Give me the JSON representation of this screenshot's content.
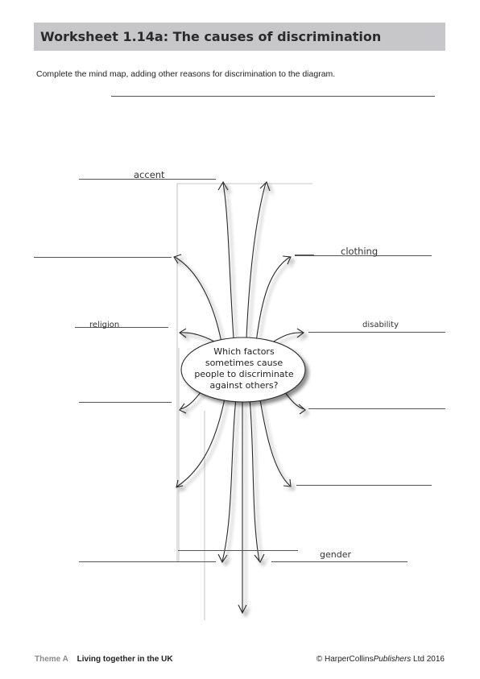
{
  "header": {
    "title": "Worksheet 1.14a: The causes of discrimination"
  },
  "instructions": "Complete the mind map, adding other reasons for discrimination to the diagram.",
  "mind_map": {
    "center": [
      "Which factors",
      "sometimes cause",
      "people to discriminate",
      "against others?"
    ],
    "branch_labels": {
      "accent": "accent",
      "clothing": "clothing",
      "religion": "religion",
      "disability": "disability",
      "gender": "gender"
    }
  },
  "footer": {
    "theme": "Theme A",
    "theme_title": "Living together in the UK",
    "copyright_prefix": "© HarperCollins",
    "copyright_publishers": "Publishers",
    "copyright_suffix": " Ltd 2016"
  }
}
